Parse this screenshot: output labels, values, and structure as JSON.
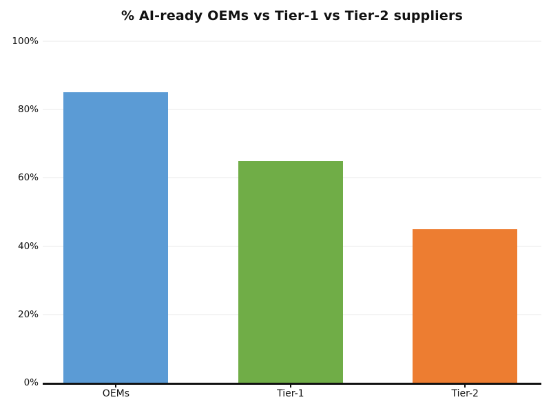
{
  "chart_data": {
    "type": "bar",
    "title": "% AI-ready OEMs vs Tier-1 vs Tier-2 suppliers",
    "categories": [
      "OEMs",
      "Tier-1",
      "Tier-2"
    ],
    "values": [
      85,
      65,
      45
    ],
    "value_unit": "%",
    "bar_colors": [
      "#5B9BD5",
      "#70AD47",
      "#ED7D31"
    ],
    "xlabel": "",
    "ylabel": "",
    "ylim": [
      0,
      100
    ],
    "yticks": [
      0,
      20,
      40,
      60,
      80,
      100
    ],
    "ytick_labels": [
      "0%",
      "20%",
      "40%",
      "60%",
      "80%",
      "100%"
    ],
    "grid": "horizontal",
    "legend": "none",
    "colors": {
      "background": "#FFFFFF",
      "gridline": "#E9E9E9",
      "axis_line": "#111111",
      "text": "#111111"
    }
  }
}
